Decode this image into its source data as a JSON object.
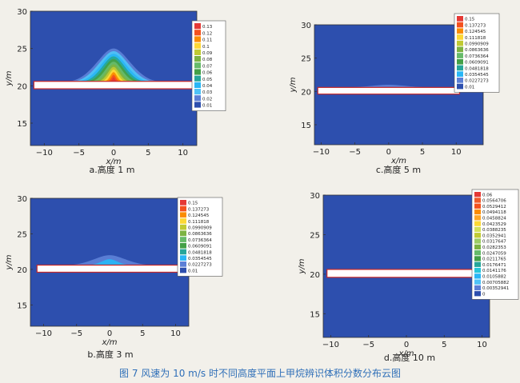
{
  "figure_caption": "图 7   风速为 10 m/s 时不同高度平面上甲烷辨识体积分数分布云图",
  "colors": {
    "background_field": "#2d4fae",
    "obstacle_fill": "#ffffff",
    "obstacle_stroke": "#c62828",
    "legend_border": "#555555"
  },
  "chart_data": [
    {
      "type": "heatmap",
      "id": "a",
      "caption": "a.高度 1 m",
      "xlabel": "x/m",
      "ylabel": "y/m",
      "xlim": [
        -12,
        12
      ],
      "ylim": [
        12,
        30
      ],
      "xticks": [
        "-10",
        "-5",
        "0",
        "5",
        "10"
      ],
      "yticks": [
        "15",
        "20",
        "25",
        "30"
      ],
      "obstacle": {
        "x": [
          -11.5,
          11.5
        ],
        "y": [
          19.6,
          20.6
        ]
      },
      "plume": {
        "center_x": 0,
        "peak_y": 25,
        "max_value": 0.13
      },
      "legend": [
        "0.13",
        "0.12",
        "0.11",
        "0.1",
        "0.09",
        "0.08",
        "0.07",
        "0.06",
        "0.05",
        "0.04",
        "0.03",
        "0.02",
        "0.01"
      ],
      "legend_colors": [
        "#e53935",
        "#f4511e",
        "#fb8c00",
        "#fdd835",
        "#c0ca33",
        "#7cb342",
        "#66bb6a",
        "#43a047",
        "#26a69a",
        "#29b6f6",
        "#4fc3f7",
        "#5c7fd6",
        "#2d4fae"
      ]
    },
    {
      "type": "heatmap",
      "id": "c",
      "caption": "c.高度 5 m",
      "xlabel": "x/m",
      "ylabel": "y/m",
      "xlim": [
        -11,
        14
      ],
      "ylim": [
        12,
        30
      ],
      "xticks": [
        "-10",
        "-5",
        "0",
        "5",
        "10"
      ],
      "yticks": [
        "15",
        "20",
        "25",
        "30"
      ],
      "obstacle": {
        "x": [
          -10.5,
          10.5
        ],
        "y": [
          19.6,
          20.6
        ]
      },
      "plume": {
        "center_x": 0,
        "peak_y": 21,
        "max_value": 0.01
      },
      "legend": [
        "0.15",
        "0.137273",
        "0.124545",
        "0.111818",
        "0.0990909",
        "0.0863636",
        "0.0736364",
        "0.0609091",
        "0.0481818",
        "0.0354545",
        "0.0227273",
        "0.01"
      ],
      "legend_colors": [
        "#e53935",
        "#f4511e",
        "#fb8c00",
        "#fdd835",
        "#c0ca33",
        "#7cb342",
        "#66bb6a",
        "#43a047",
        "#26a69a",
        "#29b6f6",
        "#5c7fd6",
        "#2d4fae"
      ]
    },
    {
      "type": "heatmap",
      "id": "b",
      "caption": "b.高度 3 m",
      "xlabel": "x/m",
      "ylabel": "y/m",
      "xlim": [
        -12,
        12
      ],
      "ylim": [
        12,
        30
      ],
      "xticks": [
        "-10",
        "-5",
        "0",
        "5",
        "10"
      ],
      "yticks": [
        "15",
        "20",
        "25",
        "30"
      ],
      "obstacle": {
        "x": [
          -11,
          11
        ],
        "y": [
          19.6,
          20.6
        ]
      },
      "plume": {
        "center_x": 0,
        "peak_y": 22,
        "max_value": 0.0227273
      },
      "legend": [
        "0.15",
        "0.137273",
        "0.124545",
        "0.111818",
        "0.0990909",
        "0.0863636",
        "0.0736364",
        "0.0609091",
        "0.0481818",
        "0.0354545",
        "0.0227273",
        "0.01"
      ],
      "legend_colors": [
        "#e53935",
        "#f4511e",
        "#fb8c00",
        "#fdd835",
        "#c0ca33",
        "#7cb342",
        "#66bb6a",
        "#43a047",
        "#26a69a",
        "#29b6f6",
        "#5c7fd6",
        "#2d4fae"
      ]
    },
    {
      "type": "heatmap",
      "id": "d",
      "caption": "d.高度 10 m",
      "xlabel": "x/m",
      "ylabel": "y/m",
      "xlim": [
        -11,
        11
      ],
      "ylim": [
        12,
        30
      ],
      "xticks": [
        "-10",
        "-5",
        "0",
        "5",
        "10"
      ],
      "yticks": [
        "15",
        "20",
        "25",
        "30"
      ],
      "obstacle": {
        "x": [
          -10.5,
          10.5
        ],
        "y": [
          19.6,
          20.6
        ]
      },
      "plume": {
        "center_x": 0,
        "peak_y": 20,
        "max_value": 0
      },
      "legend": [
        "0.06",
        "0.0564706",
        "0.0529412",
        "0.0494118",
        "0.0458824",
        "0.0423529",
        "0.0388235",
        "0.0352941",
        "0.0317647",
        "0.0282353",
        "0.0247059",
        "0.0211765",
        "0.0176471",
        "0.0141176",
        "0.0105882",
        "0.00705882",
        "0.00352941",
        "0"
      ],
      "legend_colors": [
        "#e53935",
        "#ef5a2a",
        "#f4511e",
        "#fb8c00",
        "#ffa726",
        "#fdd835",
        "#d4e157",
        "#c0ca33",
        "#9ccc65",
        "#7cb342",
        "#66bb6a",
        "#43a047",
        "#26a69a",
        "#26c6da",
        "#29b6f6",
        "#4fc3f7",
        "#5c7fd6",
        "#2d4fae"
      ]
    }
  ]
}
